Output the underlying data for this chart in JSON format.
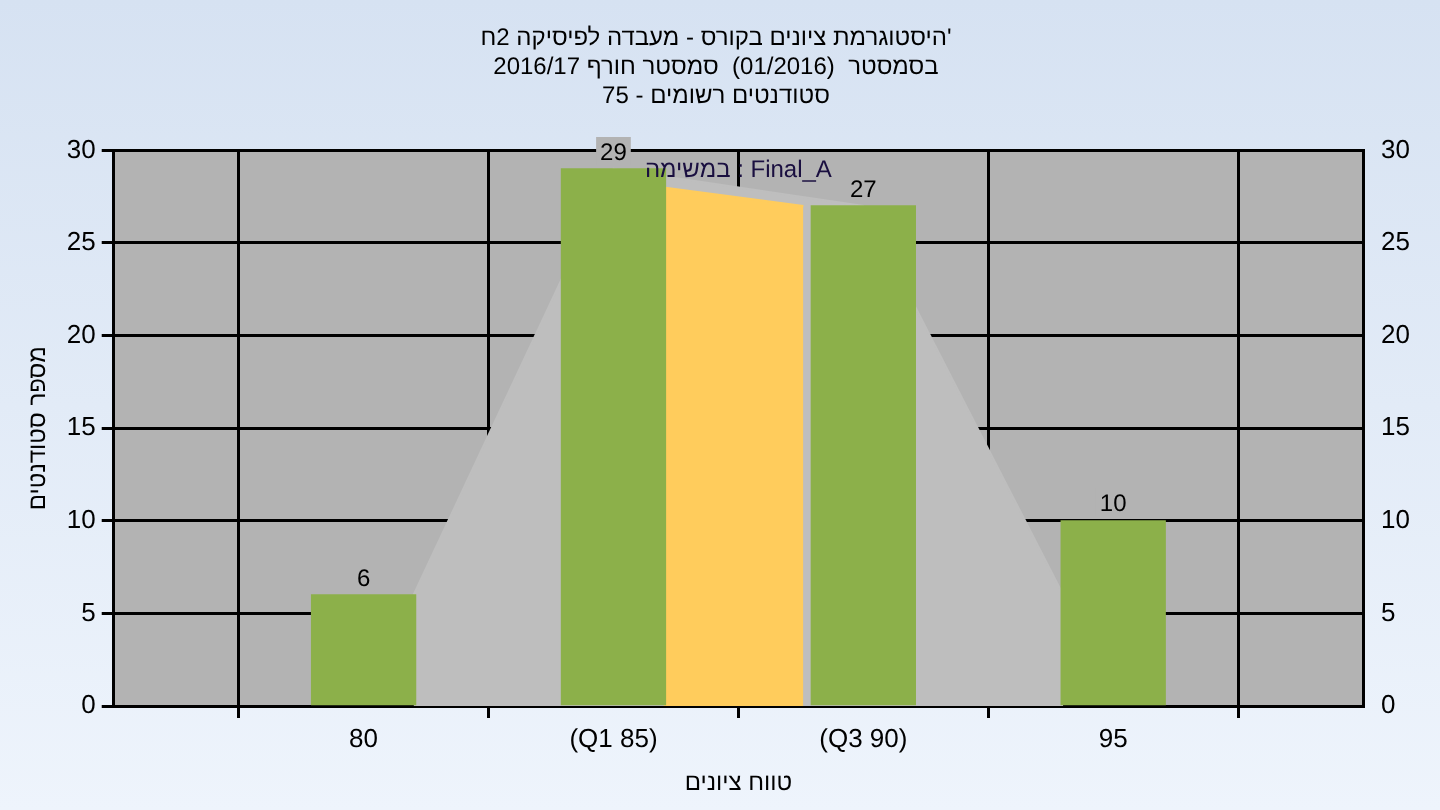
{
  "chart_data": {
    "type": "bar",
    "title": "היסטוגרמת ציונים בקורס - מעבדה לפיסיקה 2ח'",
    "subtitle": "בסמסטר  (01/2016)  סמסטר חורף 2016/17\nסטודנטים רשומים - 75",
    "annotations": [
      "במשימה : Final_A"
    ],
    "xlabel": "טווח ציונים",
    "ylabel": "מספר סטודנטים",
    "x": [
      80,
      85,
      90,
      95
    ],
    "series": [
      {
        "type": "area",
        "x": [
          81,
          85,
          90,
          94
        ],
        "values": [
          6,
          29,
          27,
          6
        ],
        "color": "#bebebe"
      },
      {
        "type": "area",
        "x": [
          86,
          88.8
        ],
        "values": [
          28,
          27
        ],
        "color": "#ffcc5c"
      },
      {
        "values": [
          6,
          29,
          27,
          10
        ],
        "color": "#8cb04a",
        "value_labels": [
          "6",
          "29",
          "27",
          "10"
        ]
      }
    ],
    "xlim": [
      75,
      100
    ],
    "xticks": [
      {
        "value": 80,
        "label": "80"
      },
      {
        "value": 85,
        "label": "(Q1 85)"
      },
      {
        "value": 90,
        "label": "(Q3 90)"
      },
      {
        "value": 95,
        "label": "95"
      }
    ],
    "ylim": [
      0,
      30
    ],
    "yticks": [
      0,
      5,
      10,
      15,
      20,
      25,
      30
    ],
    "y2lim": [
      0,
      30
    ],
    "y2ticks": [
      0,
      5,
      10,
      15,
      20,
      25,
      30
    ],
    "grid": true,
    "legend": false
  }
}
